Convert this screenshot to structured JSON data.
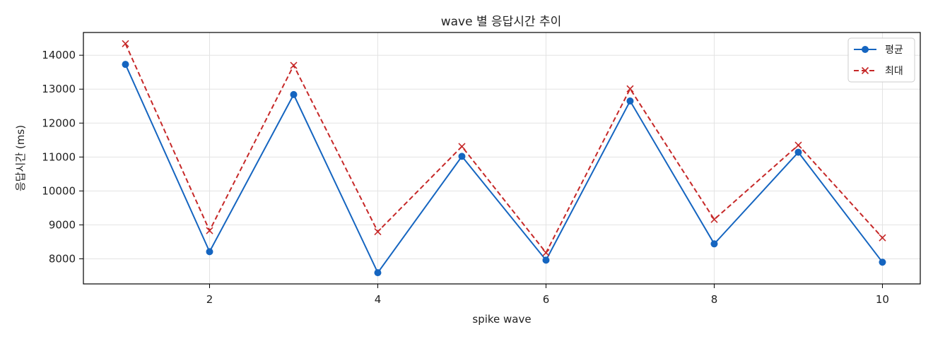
{
  "chart_data": {
    "type": "line",
    "title": "wave 별 응답시간 추이",
    "xlabel": "spike wave",
    "ylabel": "응답시간 (ms)",
    "x": [
      1,
      2,
      3,
      4,
      5,
      6,
      7,
      8,
      9,
      10
    ],
    "xlim": [
      0.5,
      10.45
    ],
    "ylim": [
      7260,
      14670
    ],
    "xticks": [
      2,
      4,
      6,
      8,
      10
    ],
    "yticks": [
      8000,
      9000,
      10000,
      11000,
      12000,
      13000,
      14000
    ],
    "grid": true,
    "legend_position": "top-right",
    "series": [
      {
        "name": "평균",
        "color": "#1565c0",
        "line_style": "solid",
        "marker": "circle",
        "values": [
          13730,
          8210,
          12840,
          7590,
          11020,
          7960,
          12650,
          8440,
          11140,
          7900
        ]
      },
      {
        "name": "최대",
        "color": "#c62828",
        "line_style": "dashed",
        "marker": "x",
        "values": [
          14340,
          8830,
          13700,
          8800,
          11310,
          8180,
          13010,
          9160,
          11350,
          8620
        ]
      }
    ]
  }
}
